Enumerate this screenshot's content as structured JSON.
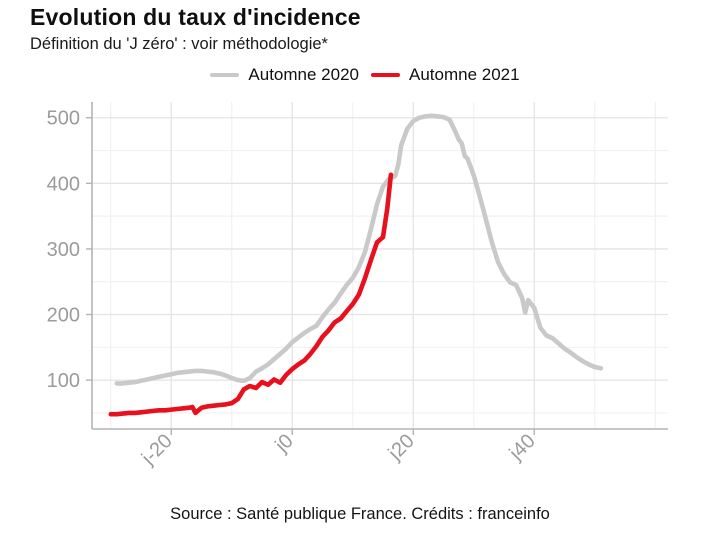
{
  "header": {
    "title": "Evolution du taux d'incidence",
    "subtitle": "Définition du 'J zéro' : voir méthodologie*"
  },
  "legend": {
    "items": [
      {
        "label": "Automne 2020",
        "color": "#c9c9c9"
      },
      {
        "label": "Automne 2021",
        "color": "#e8101d"
      }
    ]
  },
  "chart_data": {
    "type": "line",
    "title": "Evolution du taux d'incidence",
    "subtitle": "Définition du 'J zéro' : voir méthodologie*",
    "xlabel": "",
    "ylabel": "",
    "legend_position": "top",
    "grid": true,
    "x_axis": {
      "range": [
        -33.1,
        62.1
      ],
      "major_ticks": [
        {
          "value": -20,
          "label": "j-20"
        },
        {
          "value": 0,
          "label": "j0"
        },
        {
          "value": 20,
          "label": "j20"
        },
        {
          "value": 40,
          "label": "j40"
        }
      ],
      "minor_tick_values": [
        -30,
        -10,
        10,
        30,
        50,
        60
      ]
    },
    "y_axis": {
      "range": [
        27,
        524
      ],
      "major_ticks": [
        {
          "value": 100,
          "label": "100"
        },
        {
          "value": 200,
          "label": "200"
        },
        {
          "value": 300,
          "label": "300"
        },
        {
          "value": 400,
          "label": "400"
        },
        {
          "value": 500,
          "label": "500"
        }
      ],
      "minor_tick_values": [
        50,
        150,
        250,
        350,
        450
      ]
    },
    "series": [
      {
        "name": "Automne 2020",
        "color": "#c9c9c9",
        "points": [
          [
            -29,
            95
          ],
          [
            -28,
            95
          ],
          [
            -27,
            96
          ],
          [
            -26,
            97
          ],
          [
            -25,
            99
          ],
          [
            -24,
            101
          ],
          [
            -23,
            103
          ],
          [
            -22,
            105
          ],
          [
            -21,
            107
          ],
          [
            -20,
            109
          ],
          [
            -19,
            111
          ],
          [
            -18,
            112
          ],
          [
            -17,
            113
          ],
          [
            -16,
            114
          ],
          [
            -15,
            114
          ],
          [
            -14,
            113
          ],
          [
            -13,
            112
          ],
          [
            -12,
            110
          ],
          [
            -11,
            107
          ],
          [
            -10,
            103
          ],
          [
            -9,
            100
          ],
          [
            -8,
            99
          ],
          [
            -7,
            103
          ],
          [
            -6,
            113
          ],
          [
            -5,
            118
          ],
          [
            -4,
            124
          ],
          [
            -3,
            132
          ],
          [
            -2,
            140
          ],
          [
            -1,
            148
          ],
          [
            0,
            158
          ],
          [
            1,
            165
          ],
          [
            2,
            172
          ],
          [
            3,
            178
          ],
          [
            4,
            183
          ],
          [
            5,
            196
          ],
          [
            6,
            208
          ],
          [
            7,
            218
          ],
          [
            8,
            232
          ],
          [
            9,
            245
          ],
          [
            10,
            256
          ],
          [
            11,
            272
          ],
          [
            12,
            295
          ],
          [
            13,
            330
          ],
          [
            14,
            368
          ],
          [
            15,
            395
          ],
          [
            16,
            407
          ],
          [
            17,
            411
          ],
          [
            17.5,
            428
          ],
          [
            18,
            458
          ],
          [
            19,
            483
          ],
          [
            20,
            495
          ],
          [
            21,
            500
          ],
          [
            22,
            502
          ],
          [
            23,
            503
          ],
          [
            24,
            502
          ],
          [
            25,
            501
          ],
          [
            26,
            497
          ],
          [
            27,
            478
          ],
          [
            27.5,
            467
          ],
          [
            28,
            461
          ],
          [
            28.5,
            442
          ],
          [
            29,
            437
          ],
          [
            30,
            412
          ],
          [
            31,
            380
          ],
          [
            32,
            345
          ],
          [
            33,
            310
          ],
          [
            34,
            280
          ],
          [
            35,
            262
          ],
          [
            36,
            249
          ],
          [
            37,
            245
          ],
          [
            38,
            225
          ],
          [
            38.5,
            203
          ],
          [
            39,
            222
          ],
          [
            40,
            210
          ],
          [
            41,
            180
          ],
          [
            42,
            168
          ],
          [
            43,
            164
          ],
          [
            44,
            156
          ],
          [
            45,
            148
          ],
          [
            46,
            142
          ],
          [
            47,
            135
          ],
          [
            48,
            129
          ],
          [
            49,
            124
          ],
          [
            50,
            120
          ],
          [
            51,
            118
          ]
        ]
      },
      {
        "name": "Automne 2021",
        "color": "#e8101d",
        "points": [
          [
            -30,
            48
          ],
          [
            -29,
            48
          ],
          [
            -28,
            49
          ],
          [
            -27,
            50
          ],
          [
            -26,
            50
          ],
          [
            -25,
            51
          ],
          [
            -24,
            52
          ],
          [
            -23,
            53
          ],
          [
            -22,
            54
          ],
          [
            -21,
            54
          ],
          [
            -20,
            55
          ],
          [
            -19,
            56
          ],
          [
            -18,
            57
          ],
          [
            -17,
            58
          ],
          [
            -16.5,
            59
          ],
          [
            -16,
            50
          ],
          [
            -15,
            58
          ],
          [
            -14,
            60
          ],
          [
            -13,
            61
          ],
          [
            -12,
            62
          ],
          [
            -11,
            63
          ],
          [
            -10,
            65
          ],
          [
            -9,
            71
          ],
          [
            -8,
            86
          ],
          [
            -7,
            91
          ],
          [
            -6,
            88
          ],
          [
            -5,
            97
          ],
          [
            -4,
            93
          ],
          [
            -3,
            101
          ],
          [
            -2,
            96
          ],
          [
            -1,
            108
          ],
          [
            0,
            117
          ],
          [
            1,
            124
          ],
          [
            2,
            130
          ],
          [
            3,
            140
          ],
          [
            4,
            152
          ],
          [
            5,
            166
          ],
          [
            6,
            176
          ],
          [
            7,
            188
          ],
          [
            8,
            194
          ],
          [
            9,
            205
          ],
          [
            10,
            216
          ],
          [
            11,
            230
          ],
          [
            12,
            255
          ],
          [
            13,
            283
          ],
          [
            14,
            310
          ],
          [
            15,
            318
          ],
          [
            15.7,
            362
          ],
          [
            16.3,
            413
          ]
        ]
      }
    ]
  },
  "style_colors": {
    "grid_major": "#e4e4e4",
    "grid_minor": "#f1f1f1",
    "axis_line": "#b3b3b3",
    "tick_text": "#9b9b9b"
  },
  "footer": {
    "source": "Source : Santé publique France. Crédits : franceinfo"
  }
}
